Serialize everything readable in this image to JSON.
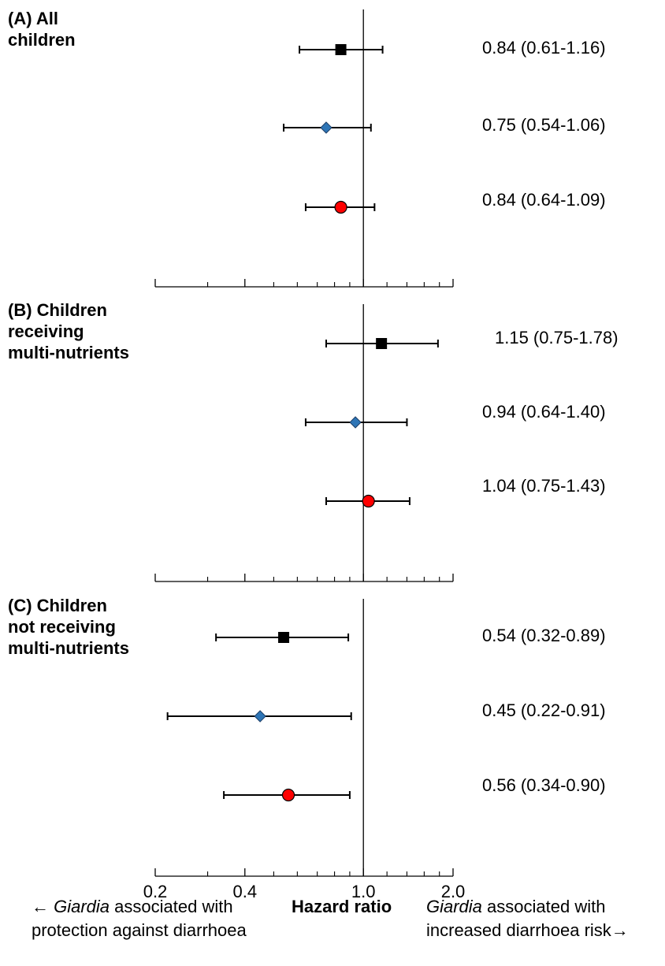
{
  "chart_data": {
    "type": "forest",
    "x_scale": "log",
    "xlim": [
      0.2,
      2.0
    ],
    "reference_line": 1.0,
    "x_tick_labels": [
      "0.2",
      "0.4",
      "1.0",
      "2.0"
    ],
    "x_tick_values": [
      0.2,
      0.4,
      1.0,
      2.0
    ],
    "x_minor_ticks": [
      0.3,
      0.5,
      0.6,
      0.7,
      0.8,
      0.9,
      1.2,
      1.4,
      1.6,
      1.8
    ],
    "marker_styles": [
      {
        "shape": "square",
        "color": "#000000"
      },
      {
        "shape": "diamond",
        "color": "#2e75b6"
      },
      {
        "shape": "circle",
        "color": "#ff0000"
      }
    ],
    "panels": [
      {
        "title_lines": [
          "(A) All",
          "children"
        ],
        "rows": [
          {
            "hr": 0.84,
            "lo": 0.61,
            "hi": 1.16,
            "label": "0.84  (0.61-1.16)"
          },
          {
            "hr": 0.75,
            "lo": 0.54,
            "hi": 1.06,
            "label": "0.75  (0.54-1.06)"
          },
          {
            "hr": 0.84,
            "lo": 0.64,
            "hi": 1.09,
            "label": "0.84  (0.64-1.09)"
          }
        ]
      },
      {
        "title_lines": [
          "(B) Children",
          "receiving",
          "multi-nutrients"
        ],
        "rows": [
          {
            "hr": 1.15,
            "lo": 0.75,
            "hi": 1.78,
            "label": "1.15  (0.75-1.78)"
          },
          {
            "hr": 0.94,
            "lo": 0.64,
            "hi": 1.4,
            "label": "0.94  (0.64-1.40)"
          },
          {
            "hr": 1.04,
            "lo": 0.75,
            "hi": 1.43,
            "label": "1.04  (0.75-1.43)"
          }
        ]
      },
      {
        "title_lines": [
          "(C) Children",
          "not receiving",
          "multi-nutrients"
        ],
        "rows": [
          {
            "hr": 0.54,
            "lo": 0.32,
            "hi": 0.89,
            "label": "0.54  (0.32-0.89)"
          },
          {
            "hr": 0.45,
            "lo": 0.22,
            "hi": 0.91,
            "label": "0.45  (0.22-0.91)"
          },
          {
            "hr": 0.56,
            "lo": 0.34,
            "hi": 0.9,
            "label": "0.56  (0.34-0.90)"
          }
        ]
      }
    ],
    "xlabel": "Hazard ratio",
    "left_note": {
      "arrow": "←",
      "italic": "Giardia",
      "line1_rest": " associated with",
      "line2": "protection against diarrhoea"
    },
    "right_note": {
      "italic": "Giardia",
      "line1_rest": " associated with",
      "line2": "increased diarrhoea risk",
      "arrow": "→"
    }
  }
}
